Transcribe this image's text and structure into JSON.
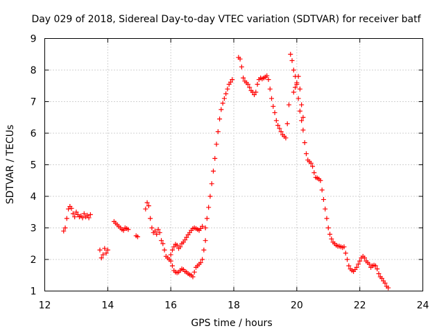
{
  "chart_data": {
    "type": "scatter",
    "title": "Day 029 of 2018, Sidereal Day-to-day VTEC variation (SDTVAR) for receiver batf",
    "xlabel": "GPS time / hours",
    "ylabel": "SDTVAR / TECUs",
    "xlim": [
      12,
      24
    ],
    "ylim": [
      1,
      9
    ],
    "x_ticks": [
      "12",
      "14",
      "16",
      "18",
      "20",
      "22",
      "24"
    ],
    "y_ticks": [
      "1",
      "2",
      "3",
      "4",
      "5",
      "6",
      "7",
      "8",
      "9"
    ],
    "grid": true,
    "marker": "+",
    "colors": {
      "series": "#ff0000",
      "grid": "#a0a0a0",
      "axes": "#000000"
    },
    "segments": [
      {
        "x": [
          12.6,
          12.65,
          12.7,
          12.75,
          12.8,
          12.85,
          12.9,
          12.95,
          13.0,
          13.05,
          13.1,
          13.15,
          13.2,
          13.25,
          13.3,
          13.35,
          13.4,
          13.45
        ],
        "y": [
          2.9,
          3.0,
          3.3,
          3.6,
          3.68,
          3.62,
          3.45,
          3.35,
          3.5,
          3.42,
          3.35,
          3.38,
          3.32,
          3.45,
          3.35,
          3.4,
          3.32,
          3.42
        ]
      },
      {
        "x": [
          13.75,
          13.8,
          13.85,
          13.9,
          13.95,
          14.0
        ],
        "y": [
          2.3,
          2.05,
          2.15,
          2.35,
          2.2,
          2.3
        ]
      },
      {
        "x": [
          14.2,
          14.25,
          14.3,
          14.35,
          14.4,
          14.45,
          14.5,
          14.55,
          14.6,
          14.65
        ],
        "y": [
          3.2,
          3.15,
          3.1,
          3.05,
          3.0,
          2.95,
          2.92,
          3.0,
          2.98,
          2.95
        ]
      },
      {
        "x": [
          14.9,
          14.95
        ],
        "y": [
          2.75,
          2.72
        ]
      },
      {
        "x": [
          15.2,
          15.25,
          15.3,
          15.35,
          15.4,
          15.45,
          15.5,
          15.55,
          15.6,
          15.65,
          15.7,
          15.75,
          15.8,
          15.85,
          15.9,
          15.95,
          16.0,
          16.05,
          16.1,
          16.15,
          16.2,
          16.25,
          16.3,
          16.35,
          16.4,
          16.45,
          16.5,
          16.55,
          16.6,
          16.65,
          16.7,
          16.75,
          16.8,
          16.85,
          16.9,
          16.95,
          17.0
        ],
        "y": [
          3.6,
          3.8,
          3.7,
          3.3,
          3.0,
          2.85,
          2.9,
          2.8,
          2.95,
          2.85,
          2.6,
          2.5,
          2.3,
          2.1,
          2.05,
          2.0,
          2.15,
          2.3,
          2.4,
          2.48,
          2.45,
          2.35,
          2.4,
          2.5,
          2.55,
          2.62,
          2.7,
          2.78,
          2.85,
          2.92,
          2.98,
          3.0,
          2.98,
          2.95,
          2.92,
          2.98,
          3.05
        ]
      },
      {
        "x": [
          16.0,
          16.05,
          16.1,
          16.15,
          16.2,
          16.25,
          16.3,
          16.35,
          16.4,
          16.45,
          16.5,
          16.55,
          16.6,
          16.65,
          16.7,
          16.75,
          16.8,
          16.85,
          16.9,
          16.95,
          17.0,
          17.05,
          17.1
        ],
        "y": [
          1.95,
          1.8,
          1.65,
          1.6,
          1.58,
          1.6,
          1.65,
          1.7,
          1.68,
          1.62,
          1.6,
          1.55,
          1.52,
          1.5,
          1.45,
          1.6,
          1.75,
          1.8,
          1.85,
          1.9,
          2.0,
          2.3,
          2.6
        ]
      },
      {
        "x": [
          17.1,
          17.15,
          17.2,
          17.25,
          17.3,
          17.35,
          17.4,
          17.45,
          17.5,
          17.55,
          17.6,
          17.65,
          17.7,
          17.75,
          17.8,
          17.85,
          17.9,
          17.95
        ],
        "y": [
          3.0,
          3.3,
          3.65,
          4.0,
          4.4,
          4.8,
          5.2,
          5.65,
          6.05,
          6.45,
          6.75,
          6.95,
          7.1,
          7.25,
          7.4,
          7.55,
          7.62,
          7.7
        ]
      },
      {
        "x": [
          18.15,
          18.2,
          18.25,
          18.3,
          18.35,
          18.4,
          18.45,
          18.5,
          18.55,
          18.6,
          18.65,
          18.7,
          18.75,
          18.8,
          18.85,
          18.9,
          18.95,
          19.0,
          19.05,
          19.1,
          19.15,
          19.2,
          19.25,
          19.3,
          19.35,
          19.4,
          19.45,
          19.5,
          19.55,
          19.6,
          19.65,
          19.7,
          19.75
        ],
        "y": [
          8.4,
          8.35,
          8.1,
          7.75,
          7.65,
          7.6,
          7.55,
          7.45,
          7.35,
          7.3,
          7.22,
          7.3,
          7.55,
          7.7,
          7.75,
          7.72,
          7.75,
          7.78,
          7.82,
          7.7,
          7.4,
          7.1,
          6.85,
          6.65,
          6.4,
          6.25,
          6.15,
          6.05,
          5.95,
          5.9,
          5.85,
          6.3,
          6.9
        ]
      },
      {
        "x": [
          19.8,
          19.85,
          19.9,
          19.95,
          20.0,
          20.05,
          20.1,
          20.15,
          20.2,
          20.25,
          20.3,
          20.35,
          20.4,
          20.45,
          20.5,
          20.55,
          20.6,
          20.65,
          20.7,
          20.75,
          20.8,
          20.85,
          20.9,
          20.95,
          21.0,
          21.05,
          21.1,
          21.15,
          21.2,
          21.25,
          21.3,
          21.35,
          21.4,
          21.45,
          21.5,
          21.55,
          21.6,
          21.65,
          21.7,
          21.75,
          21.8,
          21.85,
          21.9,
          21.95,
          22.0,
          22.05,
          22.1,
          22.15,
          22.2,
          22.25,
          22.3,
          22.35,
          22.4,
          22.45,
          22.5,
          22.55,
          22.6,
          22.65,
          22.7,
          22.75,
          22.8,
          22.85,
          22.9
        ],
        "y": [
          8.5,
          8.3,
          8.0,
          7.8,
          7.55,
          7.1,
          6.7,
          6.4,
          6.1,
          5.7,
          5.35,
          5.15,
          5.1,
          5.05,
          4.95,
          4.75,
          4.6,
          4.58,
          4.55,
          4.5,
          4.2,
          3.9,
          3.6,
          3.3,
          3.0,
          2.8,
          2.65,
          2.55,
          2.5,
          2.45,
          2.42,
          2.42,
          2.4,
          2.38,
          2.4,
          2.2,
          2.0,
          1.8,
          1.7,
          1.65,
          1.62,
          1.68,
          1.75,
          1.85,
          1.95,
          2.05,
          2.1,
          2.05,
          1.95,
          1.9,
          1.85,
          1.75,
          1.8,
          1.82,
          1.8,
          1.7,
          1.55,
          1.45,
          1.4,
          1.32,
          1.25,
          1.15,
          1.1
        ]
      },
      {
        "x": [
          19.9,
          19.95,
          20.0,
          20.05,
          20.1,
          20.15,
          20.2
        ],
        "y": [
          7.3,
          7.45,
          7.6,
          7.8,
          7.4,
          6.9,
          6.5
        ]
      }
    ]
  }
}
